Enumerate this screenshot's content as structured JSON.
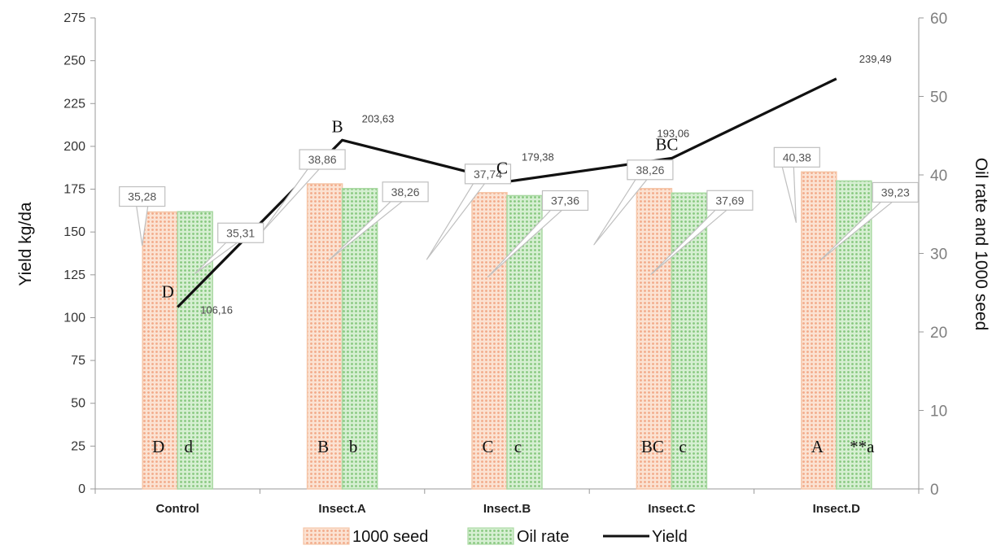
{
  "chart_data": {
    "type": "bar",
    "categories": [
      "Control",
      "Insect.A",
      "Insect.B",
      "Insect.C",
      "Insect.D"
    ],
    "series": [
      {
        "name": "1000 seed",
        "axis": "right",
        "color": "#f8c8a8",
        "values": [
          35.28,
          38.86,
          37.74,
          38.26,
          40.38
        ],
        "labels": [
          "35,28",
          "38,86",
          "37,74",
          "38,26",
          "40,38"
        ],
        "letters": [
          "D",
          "B",
          "C",
          "BC",
          "A"
        ]
      },
      {
        "name": "Oil rate",
        "axis": "right",
        "color": "#a8d8a0",
        "values": [
          35.31,
          38.26,
          37.36,
          37.69,
          39.23
        ],
        "labels": [
          "35,31",
          "38,26",
          "37,36",
          "37,69",
          "39,23"
        ],
        "letters": [
          "d",
          "b",
          "c",
          "c",
          "**a"
        ]
      },
      {
        "name": "Yield",
        "type": "line",
        "axis": "left",
        "color": "#111111",
        "values": [
          106.16,
          203.63,
          179.38,
          193.06,
          239.49
        ],
        "labels": [
          "106,16",
          "203,63",
          "179,38",
          "193,06",
          "239,49"
        ],
        "letters": [
          "D",
          "B",
          "C",
          "BC",
          ""
        ]
      }
    ],
    "ylabel": "Yield kg/da",
    "y2label": "Oil rate and 1000 seed",
    "ylim": [
      0,
      275
    ],
    "y2lim": [
      0,
      60
    ],
    "yticks": [
      0,
      25,
      50,
      75,
      100,
      125,
      150,
      175,
      200,
      225,
      250,
      275
    ],
    "y2ticks": [
      0,
      10,
      20,
      30,
      40,
      50,
      60
    ],
    "grid": false,
    "legend": "bottom"
  }
}
